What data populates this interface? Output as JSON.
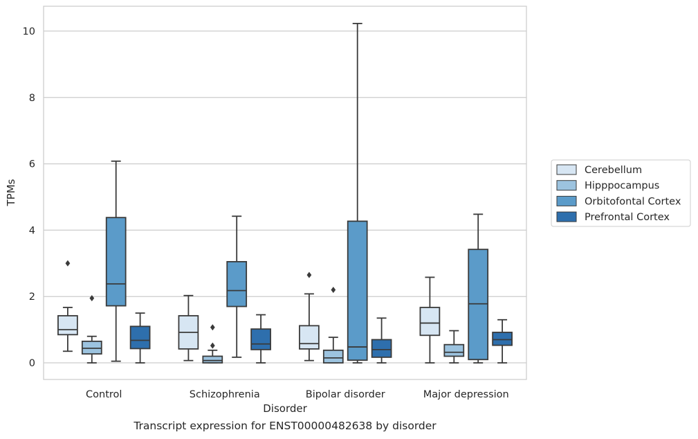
{
  "caption": "Transcript expression for ENST00000482638 by disorder",
  "chart_data": {
    "type": "boxplot",
    "xlabel": "Disorder",
    "ylabel": "TPMs",
    "ylim": [
      -0.5,
      10.75
    ],
    "yticks": [
      0,
      2,
      4,
      6,
      8,
      10
    ],
    "grid": "horizontal",
    "legend_position": "right",
    "categories": [
      "Control",
      "Schizophrenia",
      "Bipolar disorder",
      "Major depression"
    ],
    "series": [
      {
        "name": "Cerebellum",
        "color": "#d7e6f3",
        "boxes": [
          {
            "whislo": 0.35,
            "q1": 0.85,
            "med": 1.0,
            "q3": 1.42,
            "whishi": 1.67,
            "fliers": [
              3.0
            ]
          },
          {
            "whislo": 0.07,
            "q1": 0.42,
            "med": 0.92,
            "q3": 1.42,
            "whishi": 2.03,
            "fliers": []
          },
          {
            "whislo": 0.07,
            "q1": 0.42,
            "med": 0.58,
            "q3": 1.12,
            "whishi": 2.08,
            "fliers": [
              2.65
            ]
          },
          {
            "whislo": 0.0,
            "q1": 0.83,
            "med": 1.2,
            "q3": 1.67,
            "whishi": 2.58,
            "fliers": []
          }
        ]
      },
      {
        "name": "Hipppocampus",
        "color": "#9cc3df",
        "boxes": [
          {
            "whislo": 0.0,
            "q1": 0.27,
            "med": 0.44,
            "q3": 0.65,
            "whishi": 0.8,
            "fliers": [
              1.95
            ]
          },
          {
            "whislo": 0.0,
            "q1": 0.0,
            "med": 0.07,
            "q3": 0.2,
            "whishi": 0.38,
            "fliers": [
              0.52,
              1.07
            ]
          },
          {
            "whislo": 0.0,
            "q1": 0.0,
            "med": 0.15,
            "q3": 0.38,
            "whishi": 0.77,
            "fliers": [
              2.2
            ]
          },
          {
            "whislo": 0.0,
            "q1": 0.2,
            "med": 0.32,
            "q3": 0.55,
            "whishi": 0.97,
            "fliers": []
          }
        ]
      },
      {
        "name": "Orbitofontal Cortex",
        "color": "#5b9bc9",
        "boxes": [
          {
            "whislo": 0.05,
            "q1": 1.72,
            "med": 2.38,
            "q3": 4.38,
            "whishi": 6.08,
            "fliers": []
          },
          {
            "whislo": 0.17,
            "q1": 1.7,
            "med": 2.18,
            "q3": 3.05,
            "whishi": 4.42,
            "fliers": []
          },
          {
            "whislo": 0.0,
            "q1": 0.08,
            "med": 0.48,
            "q3": 4.27,
            "whishi": 10.23,
            "fliers": []
          },
          {
            "whislo": 0.0,
            "q1": 0.1,
            "med": 1.78,
            "q3": 3.42,
            "whishi": 4.48,
            "fliers": []
          }
        ]
      },
      {
        "name": "Prefrontal Cortex",
        "color": "#2e6fad",
        "boxes": [
          {
            "whislo": 0.0,
            "q1": 0.43,
            "med": 0.68,
            "q3": 1.1,
            "whishi": 1.5,
            "fliers": []
          },
          {
            "whislo": 0.0,
            "q1": 0.4,
            "med": 0.57,
            "q3": 1.02,
            "whishi": 1.45,
            "fliers": []
          },
          {
            "whislo": 0.0,
            "q1": 0.17,
            "med": 0.4,
            "q3": 0.7,
            "whishi": 1.35,
            "fliers": []
          },
          {
            "whislo": 0.0,
            "q1": 0.53,
            "med": 0.7,
            "q3": 0.92,
            "whishi": 1.3,
            "fliers": []
          }
        ]
      }
    ]
  }
}
